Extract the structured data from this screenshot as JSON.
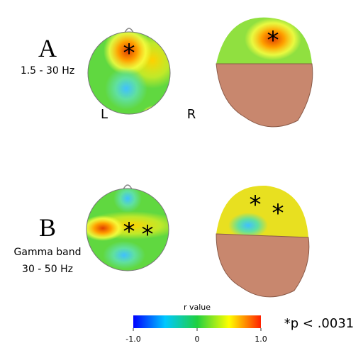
{
  "panels": [
    {
      "letter": "A",
      "lines": [
        "1.5 - 30 Hz"
      ],
      "left": "L",
      "right": "R",
      "topo_asterisks": [
        "*"
      ],
      "head_asterisks": [
        "*"
      ]
    },
    {
      "letter": "B",
      "lines": [
        "Gamma band",
        "30 - 50 Hz"
      ],
      "topo_asterisks": [
        "*",
        "*"
      ],
      "head_asterisks": [
        "*",
        "*"
      ]
    }
  ],
  "colorbar": {
    "title": "r value",
    "lim": [
      -1,
      1
    ],
    "ticks": [
      {
        "value": -1,
        "label": "-1.0"
      },
      0,
      {
        "value": 1,
        "label": "1.0"
      }
    ]
  },
  "note": "*p < .0031"
}
